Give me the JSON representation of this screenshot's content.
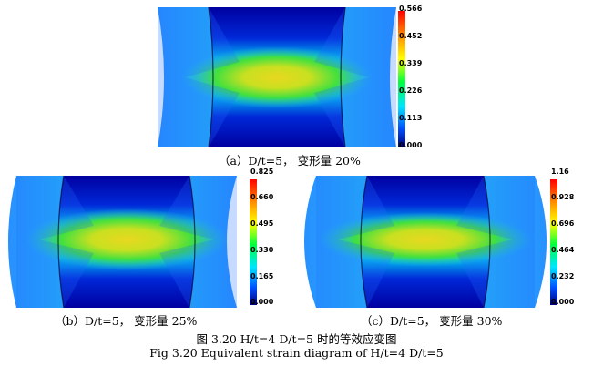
{
  "panels": [
    {
      "caption": "（a）D/t=5， 变形量 20%",
      "colorbar_ticks": [
        "0.566",
        "0.452",
        "0.339",
        "0.226",
        "0.113",
        "0.000"
      ]
    },
    {
      "caption": "（b）D/t=5， 变形量 25%",
      "colorbar_ticks": [
        "0.825",
        "0.660",
        "0.495",
        "0.330",
        "0.165",
        "0.000"
      ]
    },
    {
      "caption": "（c）D/t=5， 变形量 30%",
      "colorbar_ticks": [
        "1.16",
        "0.928",
        "0.696",
        "0.464",
        "0.232",
        "0.000"
      ]
    }
  ],
  "figure": {
    "title_cn": "图 3.20 H/t=4 D/t=5 时的等效应变图",
    "title_en": "Fig 3.20 Equivalent strain diagram of H/t=4 D/t=5"
  },
  "colors": {
    "max": "#ff0000",
    "high": "#ffff00",
    "mid": "#00ff40",
    "low": "#00e5ff",
    "min": "#00007a"
  }
}
